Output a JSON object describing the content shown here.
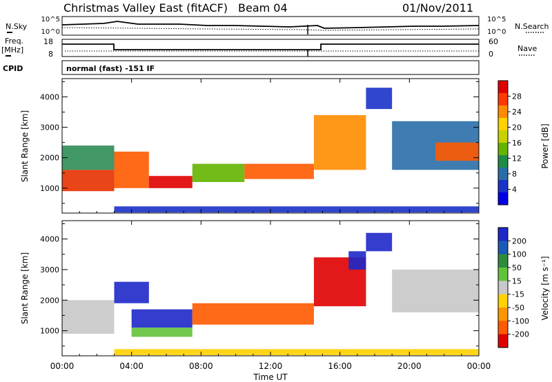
{
  "header": {
    "title": "Christmas Valley East (fitACF)",
    "beam": "Beam 04",
    "date": "01/Nov/2011"
  },
  "panels": {
    "nsky": {
      "left_label": "N.Sky",
      "left_ticks": [
        "10^5",
        "10^0"
      ],
      "right_ticks": [
        "10^5",
        "10^0"
      ],
      "right_label": "N.Search"
    },
    "freq": {
      "left_label": "Freq.",
      "left_unit": "[MHz]",
      "left_ticks": [
        "18",
        "8"
      ],
      "right_ticks": [
        "60",
        "0"
      ],
      "right_label": "Nave"
    },
    "cpid": {
      "label": "CPID",
      "text": "normal (fast) -151 IF"
    }
  },
  "power_panel": {
    "ylabel": "Slant Range [km]",
    "colorbar_label": "Power [dB]",
    "colorbar_ticks": [
      "28",
      "24",
      "20",
      "16",
      "12",
      "8",
      "4"
    ],
    "colorbar_colors": [
      "#e00000",
      "#ff3a00",
      "#ff8c00",
      "#ffd200",
      "#c8d200",
      "#64b400",
      "#1e8c46",
      "#2a6ea8",
      "#1a32c8",
      "#0000e6"
    ]
  },
  "velocity_panel": {
    "ylabel": "Slant Range [km]",
    "colorbar_label": "Velocity [m s⁻¹]",
    "colorbar_ticks": [
      "200",
      "100",
      "50",
      "15",
      "-15",
      "-50",
      "-100",
      "-200"
    ],
    "colorbar_colors": [
      "#1e28c8",
      "#1a5ab4",
      "#2e8c3c",
      "#62c23a",
      "#c8c8c8",
      "#ffd200",
      "#ff9600",
      "#ff5a00",
      "#e00000"
    ]
  },
  "xaxis": {
    "label": "Time UT",
    "ticks": [
      "00:00",
      "04:00",
      "08:00",
      "12:00",
      "16:00",
      "20:00",
      "00:00"
    ]
  },
  "chart_data": [
    {
      "type": "heatmap",
      "title": "Power",
      "xlabel": "Time UT",
      "ylabel": "Slant Range [km]",
      "xlim": [
        0,
        24
      ],
      "ylim": [
        180,
        4600
      ],
      "yticks": [
        1000,
        2000,
        3000,
        4000
      ],
      "blobs": [
        {
          "t": [
            0.0,
            3.0
          ],
          "r": [
            900,
            1600
          ],
          "color": "#e83000"
        },
        {
          "t": [
            0.0,
            3.0
          ],
          "r": [
            1600,
            2400
          ],
          "color": "#2e8c56"
        },
        {
          "t": [
            3.0,
            5.0
          ],
          "r": [
            1000,
            2200
          ],
          "color": "#ff5a00"
        },
        {
          "t": [
            5.0,
            7.5
          ],
          "r": [
            1000,
            1400
          ],
          "color": "#e00000"
        },
        {
          "t": [
            7.5,
            10.5
          ],
          "r": [
            1200,
            1800
          ],
          "color": "#64b400"
        },
        {
          "t": [
            10.5,
            14.5
          ],
          "r": [
            1300,
            1800
          ],
          "color": "#ff5a00"
        },
        {
          "t": [
            14.5,
            17.5
          ],
          "r": [
            1600,
            3400
          ],
          "color": "#ff8c00"
        },
        {
          "t": [
            17.5,
            19.0
          ],
          "r": [
            3600,
            4300
          ],
          "color": "#1a32c8"
        },
        {
          "t": [
            19.0,
            24.0
          ],
          "r": [
            1600,
            3200
          ],
          "color": "#2a6ea8"
        },
        {
          "t": [
            21.5,
            24.0
          ],
          "r": [
            1900,
            2500
          ],
          "color": "#ff5a00"
        },
        {
          "t": [
            3.0,
            24.0
          ],
          "r": [
            200,
            400
          ],
          "color": "#1a32c8"
        }
      ]
    },
    {
      "type": "heatmap",
      "title": "Velocity",
      "xlabel": "Time UT",
      "ylabel": "Slant Range [km]",
      "xlim": [
        0,
        24
      ],
      "ylim": [
        180,
        4600
      ],
      "yticks": [
        1000,
        2000,
        3000,
        4000
      ],
      "blobs": [
        {
          "t": [
            0.0,
            3.0
          ],
          "r": [
            900,
            2000
          ],
          "color": "#c8c8c8"
        },
        {
          "t": [
            3.0,
            5.0
          ],
          "r": [
            1900,
            2600
          ],
          "color": "#1e28c8"
        },
        {
          "t": [
            4.0,
            7.5
          ],
          "r": [
            1100,
            1700
          ],
          "color": "#1e28c8"
        },
        {
          "t": [
            4.0,
            7.5
          ],
          "r": [
            800,
            1100
          ],
          "color": "#62c23a"
        },
        {
          "t": [
            7.5,
            14.5
          ],
          "r": [
            1200,
            1900
          ],
          "color": "#ff5a00"
        },
        {
          "t": [
            14.5,
            17.5
          ],
          "r": [
            1800,
            3400
          ],
          "color": "#e00000"
        },
        {
          "t": [
            16.5,
            17.5
          ],
          "r": [
            3000,
            3600
          ],
          "color": "#1e28c8"
        },
        {
          "t": [
            17.5,
            19.0
          ],
          "r": [
            3600,
            4200
          ],
          "color": "#1e28c8"
        },
        {
          "t": [
            19.0,
            24.0
          ],
          "r": [
            1600,
            3000
          ],
          "color": "#c8c8c8"
        },
        {
          "t": [
            3.0,
            24.0
          ],
          "r": [
            200,
            400
          ],
          "color": "#ffd200"
        }
      ]
    }
  ]
}
